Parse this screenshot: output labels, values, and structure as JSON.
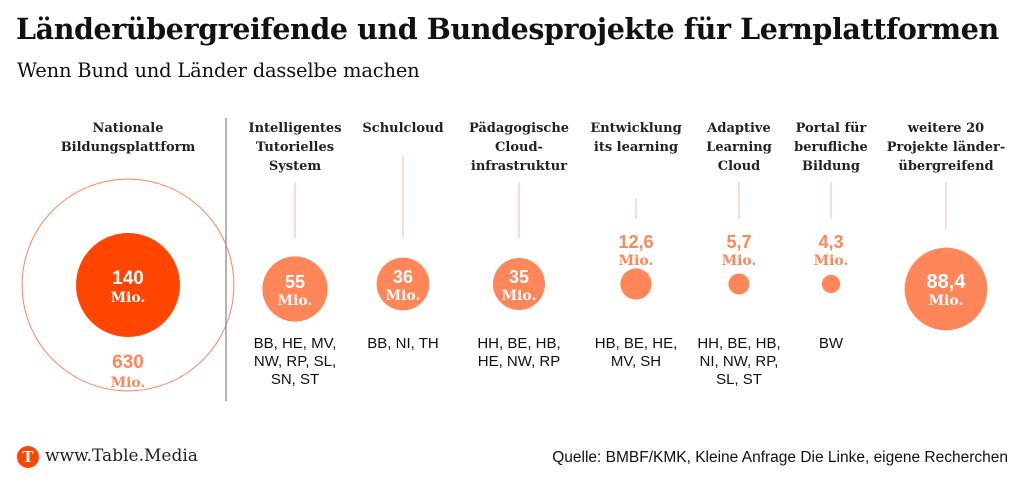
{
  "header": {
    "title": "Länderübergreifende und Bundesprojekte für Lernplattformen",
    "subtitle": "Wenn Bund und Länder dasselbe machen"
  },
  "colors": {
    "primary": "#ff4500",
    "secondary": "#ff8659",
    "leader": "#f7b8a0",
    "divider": "#9a9a9a"
  },
  "chart_data": {
    "type": "bubble",
    "title": "Länderübergreifende und Bundesprojekte für Lernplattformen",
    "subtitle": "Wenn Bund und Länder dasselbe machen",
    "unit": "Mio.",
    "featured": {
      "name": "Nationale Bildungsplattform",
      "label_lines": [
        "Nationale",
        "Bildungsplattform"
      ],
      "value": 140,
      "value_label": "140",
      "total": 630,
      "total_label": "630"
    },
    "projects": [
      {
        "name": "Intelligentes Tutorielles System",
        "label_lines": [
          "Intelligentes",
          "Tutorielles",
          "System"
        ],
        "value": 55,
        "value_label": "55",
        "label_inside": true,
        "states_lines": [
          "BB, HE, MV,",
          "NW, RP, SL,",
          "SN, ST"
        ]
      },
      {
        "name": "Schulcloud",
        "label_lines": [
          "Schulcloud"
        ],
        "value": 36,
        "value_label": "36",
        "label_inside": true,
        "states_lines": [
          "BB, NI, TH"
        ]
      },
      {
        "name": "Pädagogische Cloudinfrastruktur",
        "label_lines": [
          "Pädagogische",
          "Cloud-",
          "infrastruktur"
        ],
        "value": 35,
        "value_label": "35",
        "label_inside": true,
        "states_lines": [
          "HH, BE, HB,",
          "HE, NW, RP"
        ]
      },
      {
        "name": "Entwicklung its learning",
        "label_lines": [
          "Entwicklung",
          "its learning"
        ],
        "value": 12.6,
        "value_label": "12,6",
        "label_inside": false,
        "states_lines": [
          "HB, BE, HE,",
          "MV, SH"
        ]
      },
      {
        "name": "Adaptive Learning Cloud",
        "label_lines": [
          "Adaptive",
          "Learning",
          "Cloud"
        ],
        "value": 5.7,
        "value_label": "5,7",
        "label_inside": false,
        "states_lines": [
          "HH, BE, HB,",
          "NI, NW, RP,",
          "SL, ST"
        ]
      },
      {
        "name": "Portal für berufliche Bildung",
        "label_lines": [
          "Portal für",
          "berufliche",
          "Bildung"
        ],
        "value": 4.3,
        "value_label": "4,3",
        "label_inside": false,
        "states_lines": [
          "BW"
        ]
      },
      {
        "name": "weitere 20 Projekte länderübergreifend",
        "label_lines": [
          "weitere 20",
          "Projekte länder-",
          "übergreifend"
        ],
        "value": 88.4,
        "value_label": "88,4",
        "label_inside": true,
        "states_lines": []
      }
    ]
  },
  "footer": {
    "logo_letter": "T",
    "logo_icon": "table-media-logo-icon",
    "site": "www.Table.Media",
    "source": "Quelle: BMBF/KMK, Kleine Anfrage Die Linke, eigene Recherchen"
  }
}
